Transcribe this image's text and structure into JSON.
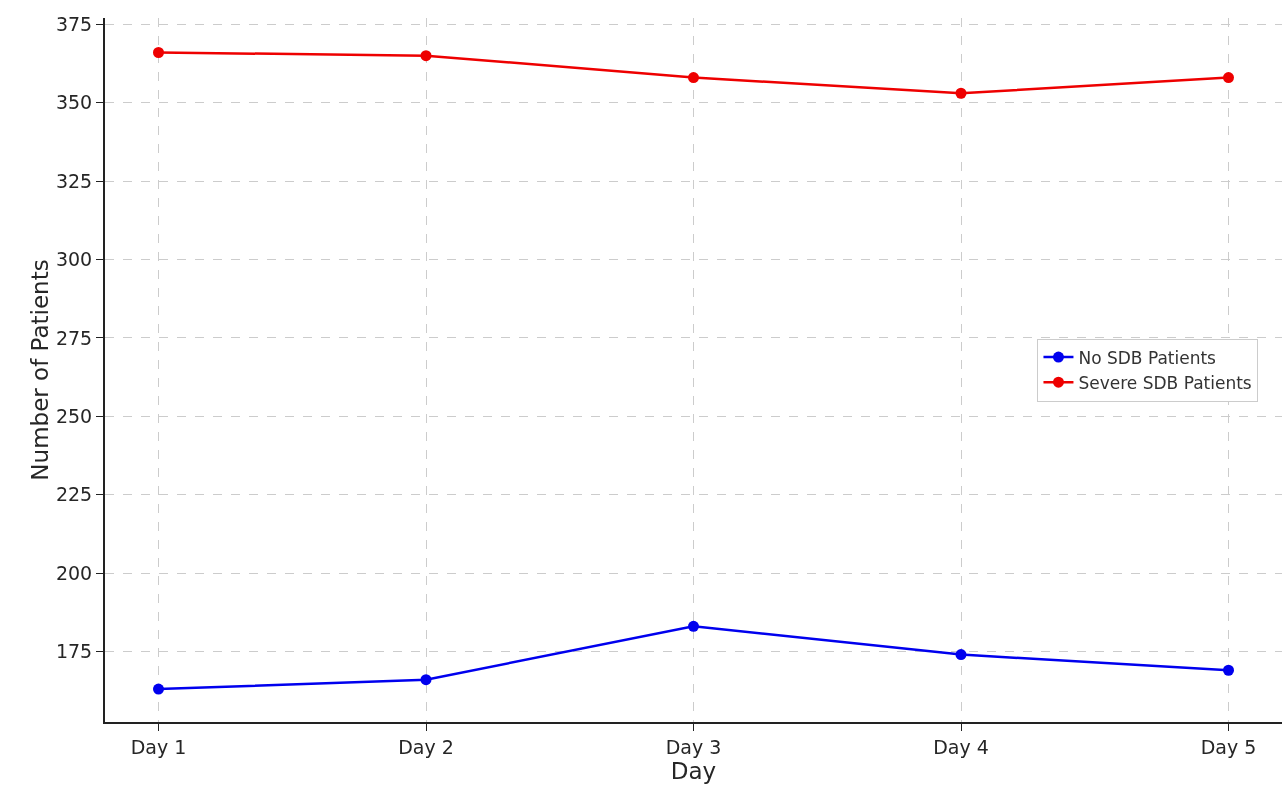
{
  "chart_data": {
    "type": "line",
    "xlabel": "Day",
    "ylabel": "Number of Patients",
    "categories": [
      "Day 1",
      "Day 2",
      "Day 3",
      "Day 4",
      "Day 5"
    ],
    "series": [
      {
        "name": "No SDB Patients",
        "color": "#0000ee",
        "values": [
          163,
          166,
          183,
          174,
          169
        ]
      },
      {
        "name": "Severe SDB Patients",
        "color": "#ee0000",
        "values": [
          366,
          365,
          358,
          353,
          358
        ]
      }
    ],
    "ylim": [
      152.5,
      377
    ],
    "yticks": [
      175,
      200,
      225,
      250,
      275,
      300,
      325,
      350,
      375
    ],
    "grid": true,
    "legend": "right",
    "marker": "circle",
    "line_style": "solid"
  }
}
